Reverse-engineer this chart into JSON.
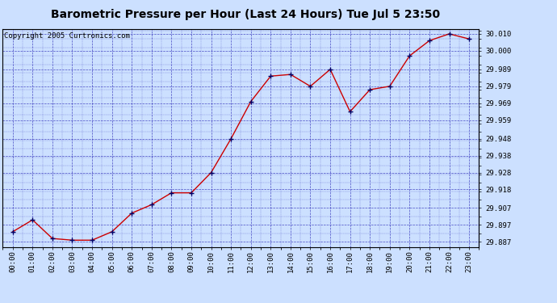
{
  "title": "Barometric Pressure per Hour (Last 24 Hours) Tue Jul 5 23:50",
  "copyright": "Copyright 2005 Curtronics.com",
  "hours": [
    0,
    1,
    2,
    3,
    4,
    5,
    6,
    7,
    8,
    9,
    10,
    11,
    12,
    13,
    14,
    15,
    16,
    17,
    18,
    19,
    20,
    21,
    22,
    23
  ],
  "x_labels": [
    "00:00",
    "01:00",
    "02:00",
    "03:00",
    "04:00",
    "05:00",
    "06:00",
    "07:00",
    "08:00",
    "09:00",
    "10:00",
    "11:00",
    "12:00",
    "13:00",
    "14:00",
    "15:00",
    "16:00",
    "17:00",
    "18:00",
    "19:00",
    "20:00",
    "21:00",
    "22:00",
    "23:00"
  ],
  "values": [
    29.893,
    29.9,
    29.889,
    29.888,
    29.888,
    29.893,
    29.904,
    29.909,
    29.916,
    29.916,
    29.928,
    29.948,
    29.97,
    29.985,
    29.986,
    29.979,
    29.989,
    29.964,
    29.977,
    29.979,
    29.997,
    30.006,
    30.01,
    30.007
  ],
  "ylim_min": 29.884,
  "ylim_max": 30.013,
  "yticks": [
    29.887,
    29.897,
    29.907,
    29.918,
    29.928,
    29.938,
    29.948,
    29.959,
    29.969,
    29.979,
    29.989,
    30.0,
    30.01
  ],
  "line_color": "#cc0000",
  "marker_color": "#000066",
  "bg_color": "#cce0ff",
  "grid_color": "#3333bb",
  "title_fontsize": 10,
  "copyright_fontsize": 6.5,
  "tick_fontsize": 6.5
}
